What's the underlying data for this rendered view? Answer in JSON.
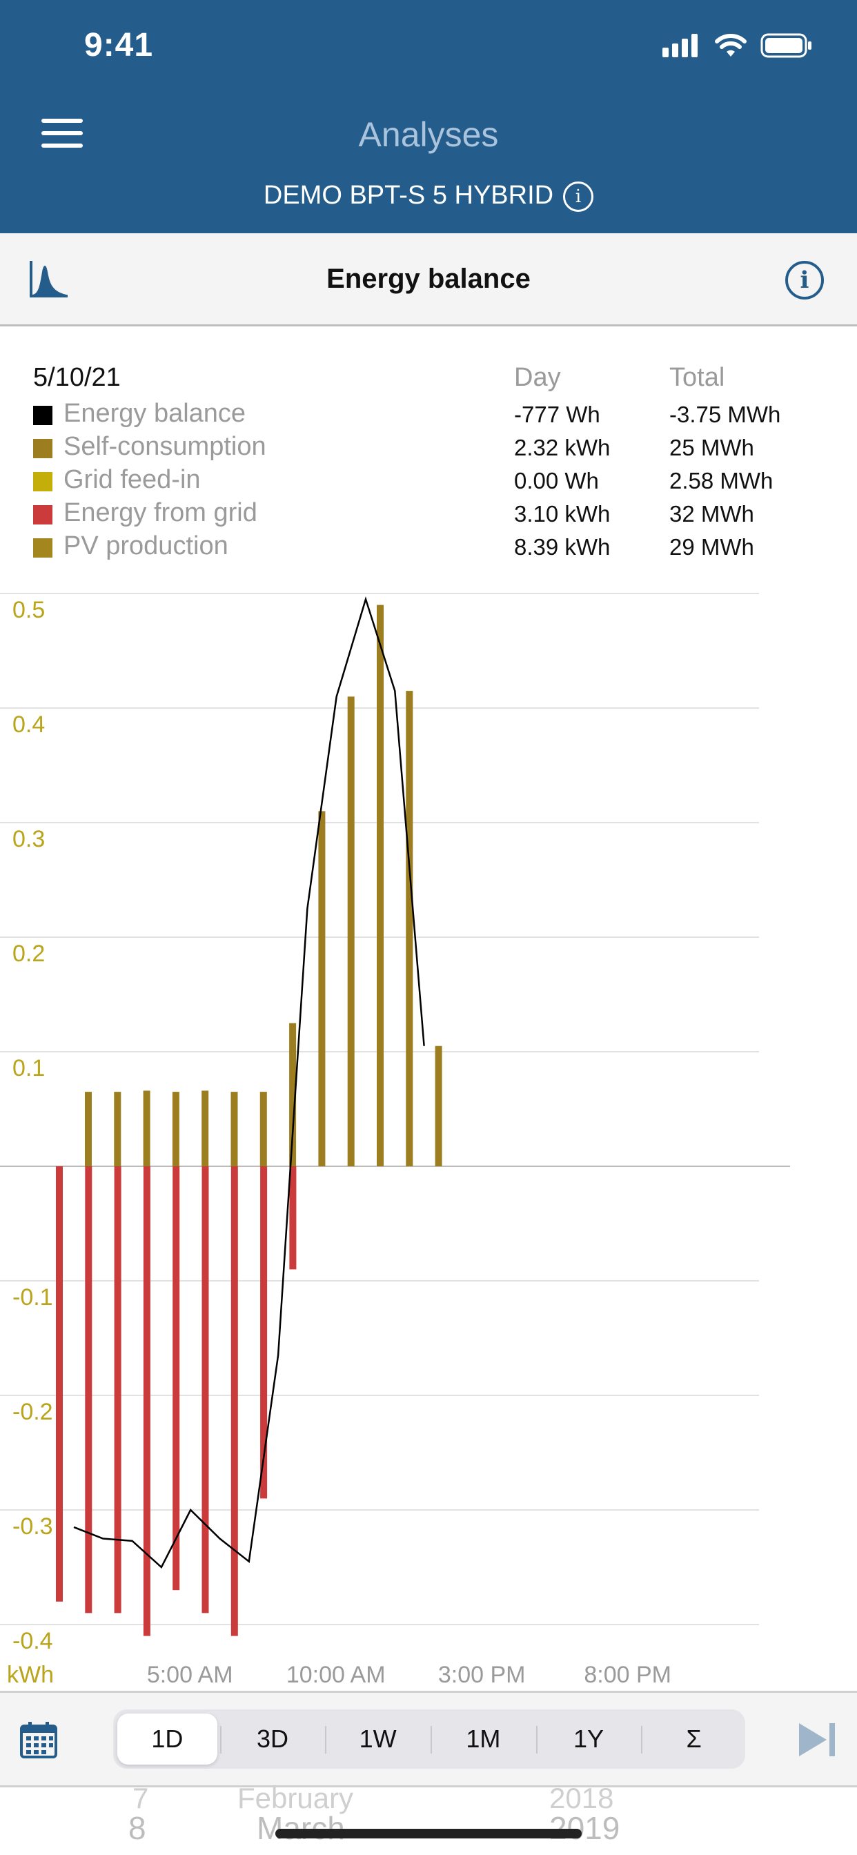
{
  "status_bar": {
    "time": "9:41"
  },
  "header": {
    "title": "Analyses",
    "device": "DEMO BPT-S 5 HYBRID",
    "device_info_icon": "info-circle-icon",
    "menu_icon": "hamburger-icon"
  },
  "subbar": {
    "title": "Energy balance",
    "chart_icon": "chart-type-icon",
    "info_icon": "info-circle-icon"
  },
  "legend": {
    "date": "5/10/21",
    "col_day": "Day",
    "col_total": "Total",
    "rows": [
      {
        "label": "Energy balance",
        "color": "#000000",
        "day": "-777 Wh",
        "total": "-3.75 MWh"
      },
      {
        "label": "Self-consumption",
        "color": "#9c7d1f",
        "day": "2.32 kWh",
        "total": "25 MWh"
      },
      {
        "label": "Grid feed-in",
        "color": "#c4ae0a",
        "day": "0.00 Wh",
        "total": "2.58 MWh"
      },
      {
        "label": "Energy from grid",
        "color": "#cc3b3b",
        "day": "3.10 kWh",
        "total": "32 MWh"
      },
      {
        "label": "PV production",
        "color": "#a3861e",
        "day": "8.39 kWh",
        "total": "29 MWh"
      }
    ]
  },
  "chart_data": {
    "type": "bar",
    "ylabel": "kWh",
    "ylim": [
      -0.42,
      0.5
    ],
    "yticks": [
      "0.5",
      "0.4",
      "0.3",
      "0.2",
      "0.1",
      "-0.1",
      "-0.2",
      "-0.3",
      "-0.4"
    ],
    "xtick_labels": [
      "5:00 AM",
      "10:00 AM",
      "3:00 PM",
      "8:00 PM"
    ],
    "hours": [
      1,
      2,
      3,
      4,
      5,
      6,
      7,
      8,
      9,
      10,
      11,
      12,
      13
    ],
    "series": [
      {
        "name": "Self-consumption",
        "color": "#9c7d1f",
        "values": [
          0.065,
          0.065,
          0.066,
          0.065,
          0.066,
          0.065,
          0.065,
          0.125,
          0.31,
          0.41,
          0.49,
          0.415,
          0.105
        ]
      },
      {
        "name": "Energy from grid",
        "color": "#cc3b3b",
        "values": [
          -0.38,
          -0.39,
          -0.39,
          -0.41,
          -0.37,
          -0.39,
          -0.41,
          -0.29,
          -0.09,
          0,
          0,
          0,
          0
        ]
      },
      {
        "name": "Energy balance",
        "color": "#000000",
        "values": [
          -0.315,
          -0.325,
          -0.327,
          -0.35,
          -0.3,
          -0.325,
          -0.345,
          -0.165,
          0.225,
          0.41,
          0.495,
          0.415,
          0.105
        ]
      }
    ]
  },
  "bottom_bar": {
    "calendar_icon": "calendar-icon",
    "ranges": [
      "1D",
      "3D",
      "1W",
      "1M",
      "1Y",
      "Σ"
    ],
    "active_range": "1D",
    "skip_icon": "skip-to-end-icon"
  },
  "picker": {
    "day_prev": "7",
    "day_cur": "8",
    "month_prev": "February",
    "month_cur": "March",
    "year_prev": "2018",
    "year_cur": "2019"
  }
}
